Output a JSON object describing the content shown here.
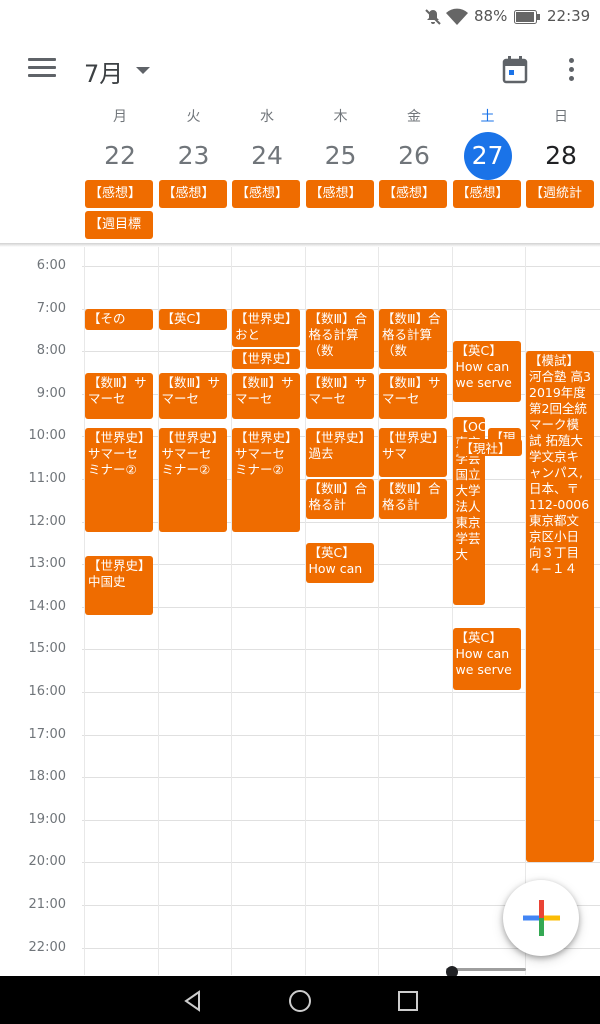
{
  "status_bar": {
    "battery": "88%",
    "time": "22:39"
  },
  "header": {
    "month": "7月"
  },
  "days": [
    {
      "dow": "月",
      "date": "22"
    },
    {
      "dow": "火",
      "date": "23"
    },
    {
      "dow": "水",
      "date": "24"
    },
    {
      "dow": "木",
      "date": "25"
    },
    {
      "dow": "金",
      "date": "26"
    },
    {
      "dow": "土",
      "date": "27",
      "today": true
    },
    {
      "dow": "日",
      "date": "28"
    }
  ],
  "all_day_events": [
    {
      "day": 0,
      "row": 0,
      "title": "【感想】"
    },
    {
      "day": 1,
      "row": 0,
      "title": "【感想】"
    },
    {
      "day": 2,
      "row": 0,
      "title": "【感想】"
    },
    {
      "day": 3,
      "row": 0,
      "title": "【感想】"
    },
    {
      "day": 4,
      "row": 0,
      "title": "【感想】"
    },
    {
      "day": 5,
      "row": 0,
      "title": "【感想】"
    },
    {
      "day": 6,
      "row": 0,
      "title": "【週統計"
    },
    {
      "day": 0,
      "row": 1,
      "title": "【週目標"
    }
  ],
  "hours": [
    "6:00",
    "7:00",
    "8:00",
    "9:00",
    "10:00",
    "11:00",
    "12:00",
    "13:00",
    "14:00",
    "15:00",
    "16:00",
    "17:00",
    "18:00",
    "19:00",
    "20:00",
    "21:00",
    "22:00"
  ],
  "events": [
    {
      "day": 0,
      "start": 7.0,
      "end": 7.5,
      "title": "【その"
    },
    {
      "day": 0,
      "start": 8.5,
      "end": 9.6,
      "title": "【数Ⅲ】サマーセ"
    },
    {
      "day": 0,
      "start": 9.8,
      "end": 12.25,
      "title": "【世界史】サマーセミナー②"
    },
    {
      "day": 0,
      "start": 12.8,
      "end": 14.2,
      "title": "【世界史】中国史"
    },
    {
      "day": 1,
      "start": 7.0,
      "end": 7.5,
      "title": "【英C】How can we serve"
    },
    {
      "day": 1,
      "start": 8.5,
      "end": 9.6,
      "title": "【数Ⅲ】サマーセ"
    },
    {
      "day": 1,
      "start": 9.8,
      "end": 12.25,
      "title": "【世界史】サマーセミナー②"
    },
    {
      "day": 2,
      "start": 7.0,
      "end": 7.9,
      "title": "【世界史】おと"
    },
    {
      "day": 2,
      "start": 7.95,
      "end": 8.42,
      "title": "【世界史】"
    },
    {
      "day": 2,
      "start": 8.5,
      "end": 9.6,
      "title": "【数Ⅲ】サマーセ"
    },
    {
      "day": 2,
      "start": 9.8,
      "end": 12.25,
      "title": "【世界史】サマーセミナー②"
    },
    {
      "day": 3,
      "start": 7.0,
      "end": 8.42,
      "title": "【数Ⅲ】合格る計算（数"
    },
    {
      "day": 3,
      "start": 8.5,
      "end": 9.6,
      "title": "【数Ⅲ】サマーセ"
    },
    {
      "day": 3,
      "start": 9.8,
      "end": 10.95,
      "title": "【世界史】過去"
    },
    {
      "day": 3,
      "start": 11.0,
      "end": 11.95,
      "title": "【数Ⅲ】合格る計"
    },
    {
      "day": 3,
      "start": 12.5,
      "end": 13.45,
      "title": "【英C】How can"
    },
    {
      "day": 4,
      "start": 7.0,
      "end": 8.42,
      "title": "【数Ⅲ】合格る計算（数"
    },
    {
      "day": 4,
      "start": 8.5,
      "end": 9.6,
      "title": "【数Ⅲ】サマーセ"
    },
    {
      "day": 4,
      "start": 9.8,
      "end": 10.95,
      "title": "【世界史】サマ"
    },
    {
      "day": 4,
      "start": 11.0,
      "end": 11.95,
      "title": "【数Ⅲ】合格る計"
    },
    {
      "day": 5,
      "start": 7.75,
      "end": 9.2,
      "title": "【英C】How can we serve"
    },
    {
      "day": 5,
      "start": 9.55,
      "end": 13.95,
      "title": "【OC】東京学芸国立大学法人東京学芸大",
      "narrow": "left"
    },
    {
      "day": 5,
      "start": 9.8,
      "end": 10.25,
      "title": "【現",
      "narrow": "right"
    },
    {
      "day": 5,
      "start": 10.05,
      "end": 10.45,
      "title": "【現社】",
      "narrow": "mid"
    },
    {
      "day": 5,
      "start": 14.5,
      "end": 15.95,
      "title": "【英C】How can we serve"
    },
    {
      "day": 6,
      "start": 8.0,
      "end": 20.0,
      "title": "【模試】河合塾 高3 2019年度第2回全統マーク模試 拓殖大学文京キャンパス, 日本、〒112-0006 東京都文京区小日向３丁目４−１４"
    }
  ]
}
